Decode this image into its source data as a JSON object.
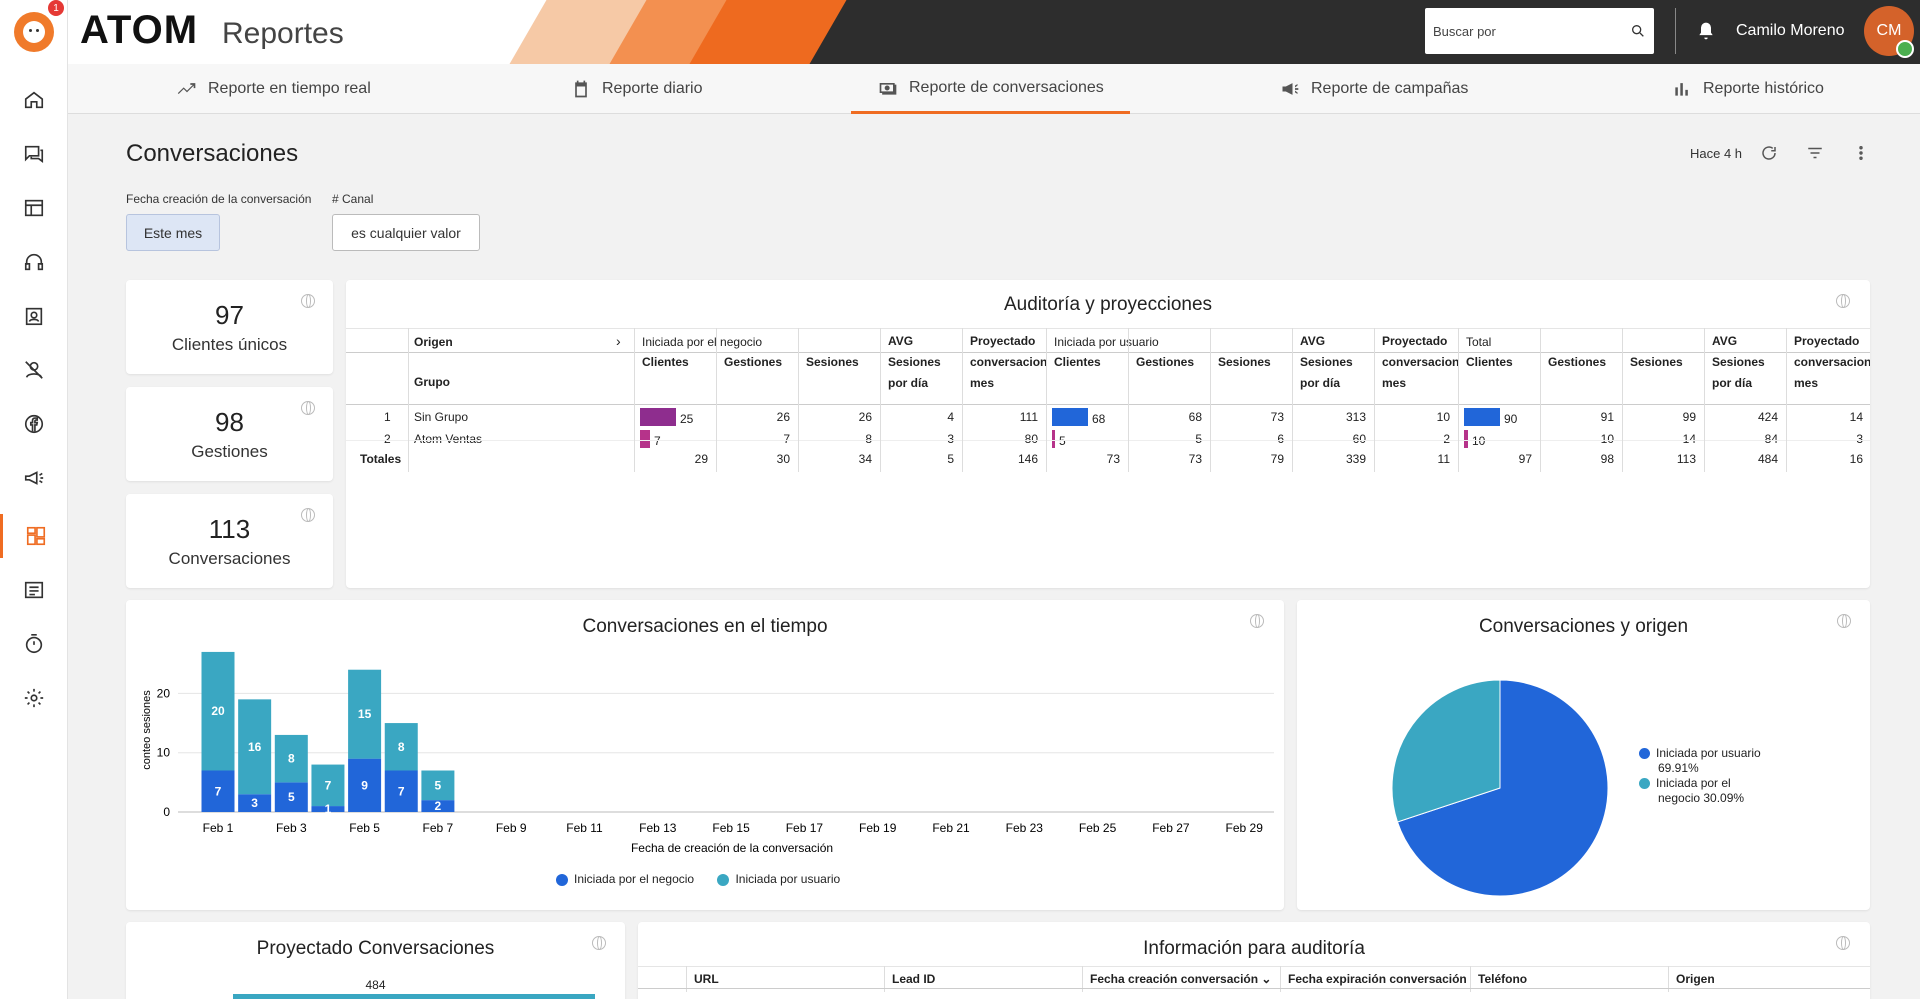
{
  "app": {
    "brand": "ATOM",
    "brand_sub": "Reportes",
    "notif_count": "1"
  },
  "header": {
    "search_placeholder": "Buscar por",
    "user_name": "Camilo Moreno",
    "user_initials": "CM"
  },
  "tabs": [
    {
      "label": "Reporte en tiempo real"
    },
    {
      "label": "Reporte diario"
    },
    {
      "label": "Reporte de conversaciones"
    },
    {
      "label": "Reporte de campañas"
    },
    {
      "label": "Reporte histórico"
    }
  ],
  "page": {
    "title": "Conversaciones",
    "updated": "Hace 4 h"
  },
  "filters": {
    "date_label": "Fecha creación de la conversación",
    "date_value": "Este mes",
    "channel_label": "# Canal",
    "channel_value": "es cualquier valor"
  },
  "kpis": [
    {
      "value": "97",
      "label": "Clientes únicos"
    },
    {
      "value": "98",
      "label": "Gestiones"
    },
    {
      "value": "113",
      "label": "Conversaciones"
    }
  ],
  "audit": {
    "title": "Auditoría y proyecciones",
    "origen_label": "Origen",
    "grupo_label": "Grupo",
    "group_headers": [
      "Iniciada por el negocio",
      "Iniciada por usuario",
      "Total"
    ],
    "col_headers": [
      "Clientes",
      "Gestiones",
      "Sesiones",
      "AVG Sesiones por día",
      "Proyectado conversacion mes"
    ],
    "rows": [
      {
        "num": "1",
        "grupo": "Sin Grupo",
        "vals": [
          "25",
          "26",
          "26",
          "4",
          "111",
          "68",
          "68",
          "73",
          "313",
          "10",
          "90",
          "91",
          "99",
          "424",
          "14"
        ]
      },
      {
        "num": "2",
        "grupo": "Atom Ventas",
        "vals": [
          "7",
          "7",
          "8",
          "3",
          "80",
          "5",
          "5",
          "6",
          "60",
          "2",
          "10",
          "10",
          "14",
          "84",
          "3"
        ]
      }
    ],
    "totals_label": "Totales",
    "totals": [
      "29",
      "30",
      "34",
      "5",
      "146",
      "73",
      "73",
      "79",
      "339",
      "11",
      "97",
      "98",
      "113",
      "484",
      "16"
    ]
  },
  "time_chart": {
    "title": "Conversaciones en el tiempo",
    "ylabel": "conteo sesiones",
    "xlabel": "Fecha de creación de la conversación",
    "yticks": [
      "20",
      "10",
      "0"
    ],
    "xticks": [
      "Feb 1",
      "Feb 3",
      "Feb 5",
      "Feb 7",
      "Feb 9",
      "Feb 11",
      "Feb 13",
      "Feb 15",
      "Feb 17",
      "Feb 19",
      "Feb 21",
      "Feb 23",
      "Feb 25",
      "Feb 27",
      "Feb 29"
    ],
    "legend": [
      "Iniciada por el negocio",
      "Iniciada por usuario"
    ]
  },
  "chart_data": [
    {
      "type": "bar",
      "title": "Conversaciones en el tiempo",
      "xlabel": "Fecha de creación de la conversación",
      "ylabel": "conteo sesiones",
      "categories": [
        "Feb 1",
        "Feb 2",
        "Feb 3",
        "Feb 4",
        "Feb 5",
        "Feb 6",
        "Feb 7"
      ],
      "series": [
        {
          "name": "Iniciada por el negocio",
          "values": [
            7,
            3,
            5,
            1,
            9,
            7,
            2
          ],
          "color": "#2166d9"
        },
        {
          "name": "Iniciada por usuario",
          "values": [
            20,
            16,
            8,
            7,
            15,
            8,
            5
          ],
          "color": "#3aa7c2"
        }
      ],
      "ylim": [
        0,
        28
      ],
      "stacked": true
    },
    {
      "type": "pie",
      "title": "Conversaciones y origen",
      "labels": [
        "Iniciada por usuario",
        "Iniciada por el negocio"
      ],
      "values": [
        69.91,
        30.09
      ],
      "colors": [
        "#2166d9",
        "#3aa7c2"
      ]
    },
    {
      "type": "bar",
      "title": "Proyectado Conversaciones",
      "values": [
        484
      ]
    }
  ],
  "pie_chart": {
    "title": "Conversaciones y origen",
    "legend1": "Iniciada por usuario",
    "legend1_pct": "69.91%",
    "legend2a": "Iniciada por el",
    "legend2b": "negocio 30.09%"
  },
  "proj_chart": {
    "title": "Proyectado Conversaciones",
    "value": "484"
  },
  "info_table": {
    "title": "Información para auditoría",
    "cols": [
      "URL",
      "Lead ID",
      "Fecha creación conversación",
      "Fecha expiración conversación",
      "Teléfono",
      "Origen"
    ]
  },
  "colors": {
    "accent": "#ef6c22",
    "blue": "#2166d9",
    "teal": "#3aa7c2",
    "purple": "#8e2d8e"
  }
}
